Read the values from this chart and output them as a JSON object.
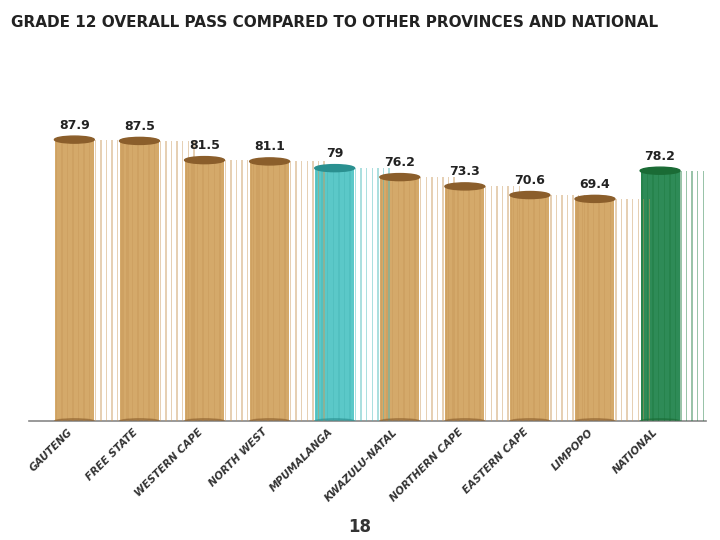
{
  "title": "GRADE 12 OVERALL PASS COMPARED TO OTHER PROVINCES AND NATIONAL",
  "title_bg": "#F0C030",
  "categories": [
    "GAUTENG",
    "FREE STATE",
    "WESTERN CAPE",
    "NORTH WEST",
    "MPUMALANGA",
    "KWAZULU-NATAL",
    "NORTHERN CAPE",
    "EASTERN CAPE",
    "LIMPOPO",
    "NATIONAL"
  ],
  "values": [
    87.9,
    87.5,
    81.5,
    81.1,
    79,
    76.2,
    73.3,
    70.6,
    69.4,
    78.2
  ],
  "value_labels": [
    "87.9",
    "87.5",
    "81.5",
    "81.1",
    "79",
    "76.2",
    "73.3",
    "70.6",
    "69.4",
    "78.2"
  ],
  "bar_colors": [
    "#D4A96A",
    "#D4A96A",
    "#D4A96A",
    "#D4A96A",
    "#5BC8C8",
    "#D4A96A",
    "#D4A96A",
    "#D4A96A",
    "#D4A96A",
    "#2E8B57"
  ],
  "stripe_colors": [
    "#C8985A",
    "#C8985A",
    "#C8985A",
    "#C8985A",
    "#48B8B8",
    "#C8985A",
    "#C8985A",
    "#C8985A",
    "#C8985A",
    "#1E7A40"
  ],
  "cap_colors": [
    "#8B5E2B",
    "#8B5E2B",
    "#8B5E2B",
    "#8B5E2B",
    "#2A9090",
    "#8B5E2B",
    "#8B5E2B",
    "#8B5E2B",
    "#8B5E2B",
    "#1A6B35"
  ],
  "page_number": "18",
  "ymin": 0,
  "ymax": 100,
  "background_color": "#FFFFFF",
  "value_fontsize": 9,
  "label_fontsize": 7.5,
  "n_stripes": 14,
  "bar_width": 0.6
}
